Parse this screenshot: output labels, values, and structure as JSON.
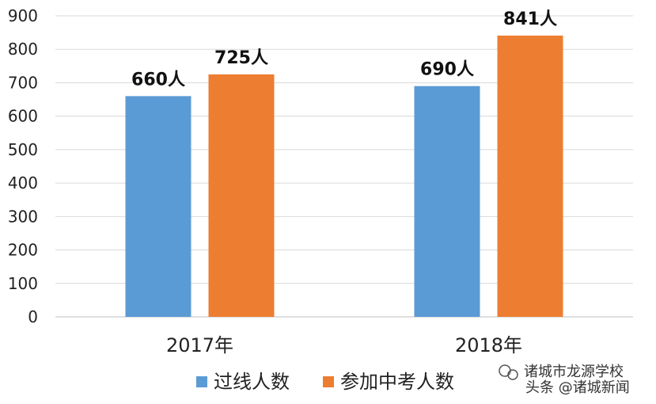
{
  "chart_data": {
    "type": "bar",
    "categories": [
      "2017年",
      "2018年"
    ],
    "series": [
      {
        "name": "过线人数",
        "values": [
          660,
          690
        ],
        "color": "#5B9BD5",
        "labels": [
          "660人",
          "690人"
        ]
      },
      {
        "name": "参加中考人数",
        "values": [
          725,
          841
        ],
        "color": "#ED7D31",
        "labels": [
          "725人",
          "841人"
        ]
      }
    ],
    "ylim": [
      0,
      900
    ],
    "yticks": [
      0,
      100,
      200,
      300,
      400,
      500,
      600,
      700,
      800,
      900
    ],
    "grid": true,
    "legend": "bottom"
  },
  "watermark": {
    "line1": "诸城市龙源学校",
    "line2": "头条 @诸城新闻"
  }
}
